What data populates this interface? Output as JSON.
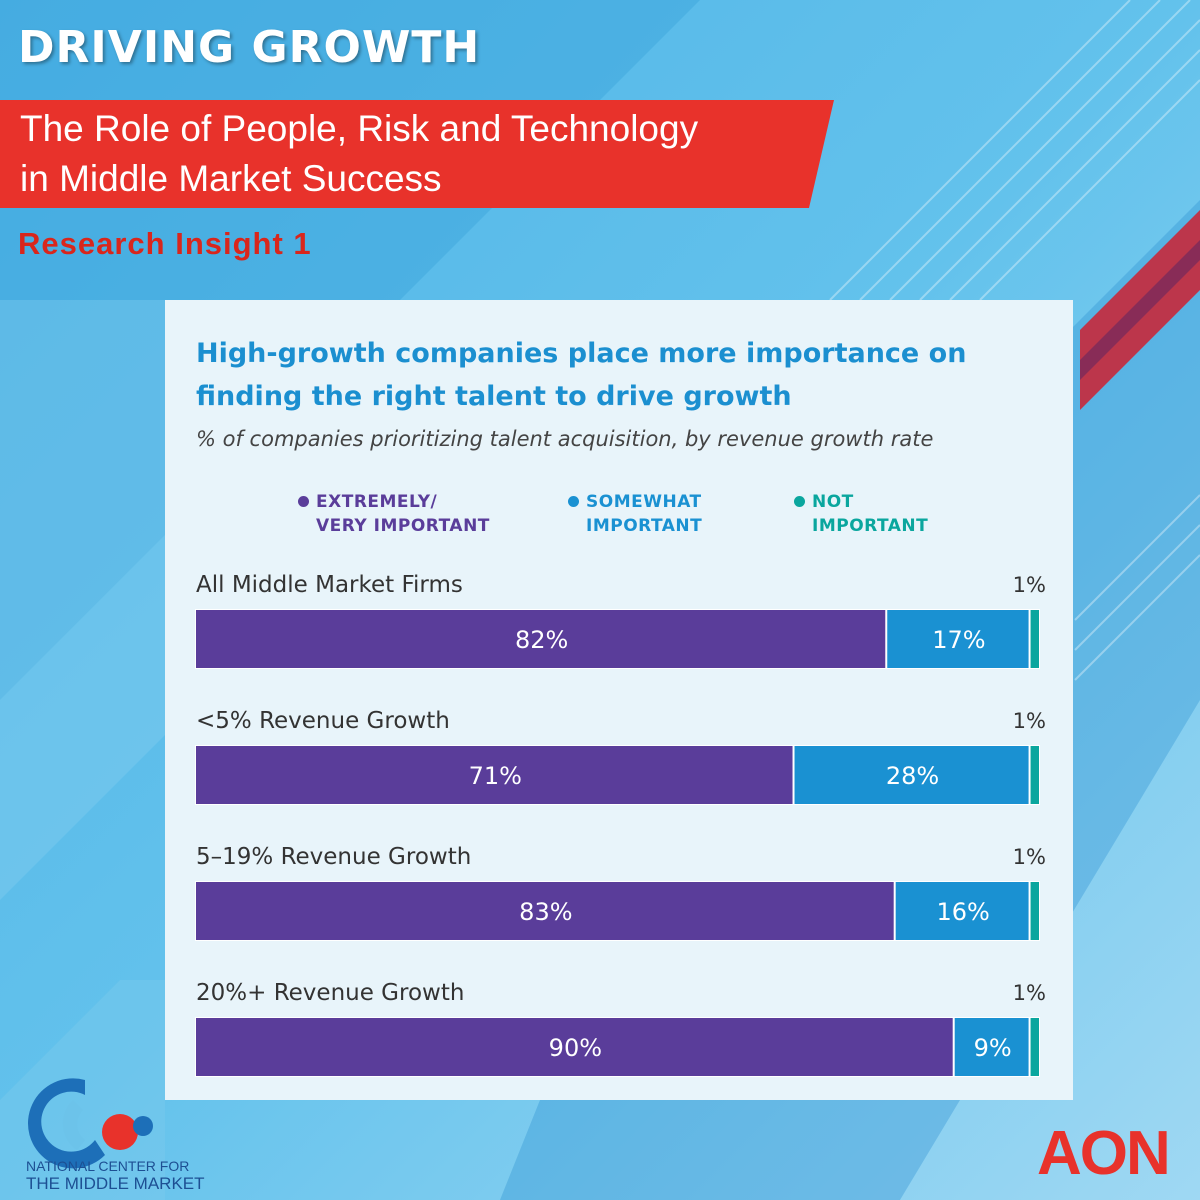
{
  "header": {
    "title": "DRIVING GROWTH",
    "banner_line1": "The Role of People, Risk and Technology",
    "banner_line2": "in Middle Market Success",
    "insight": "Research Insight 1"
  },
  "colors": {
    "extremely": "#5a3d9a",
    "somewhat": "#1a91d2",
    "not": "#0aa69e",
    "accent_red": "#e8322b",
    "title_blue": "#1b8fd0"
  },
  "chart_data": {
    "type": "bar",
    "orientation": "horizontal",
    "stacked": true,
    "title": "High-growth companies place more importance on finding the right talent to drive growth",
    "subtitle": "% of companies prioritizing talent acquisition, by revenue growth rate",
    "legend": {
      "placement": "top",
      "items": [
        {
          "line1": "EXTREMELY/",
          "line2": "VERY IMPORTANT",
          "color": "#5a3d9a"
        },
        {
          "line1": "SOMEWHAT",
          "line2": "IMPORTANT",
          "color": "#1a91d2"
        },
        {
          "line1": "NOT",
          "line2": "IMPORTANT",
          "color": "#0aa69e"
        }
      ]
    },
    "categories": [
      "All Middle Market Firms",
      "<5% Revenue Growth",
      "5–19% Revenue Growth",
      "20%+ Revenue Growth"
    ],
    "series": [
      {
        "name": "EXTREMELY/ VERY IMPORTANT",
        "values": [
          82,
          71,
          83,
          90
        ],
        "labels": [
          "82%",
          "71%",
          "83%",
          "90%"
        ]
      },
      {
        "name": "SOMEWHAT IMPORTANT",
        "values": [
          17,
          28,
          16,
          9
        ],
        "labels": [
          "17%",
          "28%",
          "16%",
          "9%"
        ]
      },
      {
        "name": "NOT IMPORTANT",
        "values": [
          1,
          1,
          1,
          1
        ],
        "labels": [
          "1%",
          "1%",
          "1%",
          "1%"
        ]
      }
    ],
    "xlim": [
      0,
      100
    ],
    "grid": false
  },
  "footer": {
    "ncmm_line1": "NATIONAL CENTER FOR",
    "ncmm_line2": "THE MIDDLE MARKET",
    "aon": "AON"
  }
}
